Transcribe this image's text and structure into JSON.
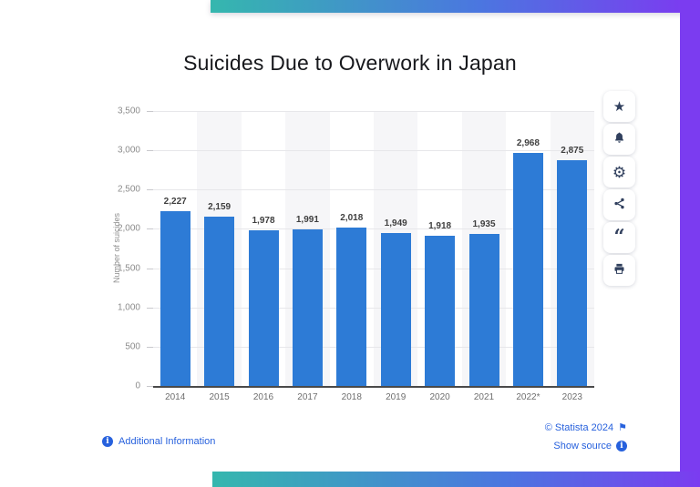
{
  "chart_data": {
    "type": "bar",
    "title": "Suicides Due to Overwork in Japan",
    "categories": [
      "2014",
      "2015",
      "2016",
      "2017",
      "2018",
      "2019",
      "2020",
      "2021",
      "2022*",
      "2023"
    ],
    "values": [
      2227,
      2159,
      1978,
      1991,
      2018,
      1949,
      1918,
      1935,
      2968,
      2875
    ],
    "value_labels": [
      "2,227",
      "2,159",
      "1,978",
      "1,991",
      "2,018",
      "1,949",
      "1,918",
      "1,935",
      "2,968",
      "2,875"
    ],
    "xlabel": "",
    "ylabel": "Number of suicides",
    "ylim": [
      0,
      3500
    ],
    "ytick_step": 500,
    "ytick_labels": [
      "0",
      "500",
      "1,000",
      "1,500",
      "2,000",
      "2,500",
      "3,000",
      "3,500"
    ],
    "grid": true,
    "legend": "none",
    "alternating_plot_bands": true
  },
  "toolbar": {
    "buttons": [
      {
        "id": "favorite",
        "icon": "star-icon"
      },
      {
        "id": "notifications",
        "icon": "bell-icon"
      },
      {
        "id": "settings",
        "icon": "gear-icon"
      },
      {
        "id": "share",
        "icon": "share-icon"
      },
      {
        "id": "cite",
        "icon": "quote-icon"
      },
      {
        "id": "print",
        "icon": "printer-icon"
      }
    ]
  },
  "footer": {
    "additional_information": "Additional Information",
    "copyright": "© Statista 2024",
    "show_source": "Show source"
  },
  "colors": {
    "bar": "#2d7bd6",
    "link": "#2761dd",
    "icon": "#31405e",
    "gradient": [
      "#35b7ae",
      "#4b76e0",
      "#7b3cf0"
    ]
  }
}
